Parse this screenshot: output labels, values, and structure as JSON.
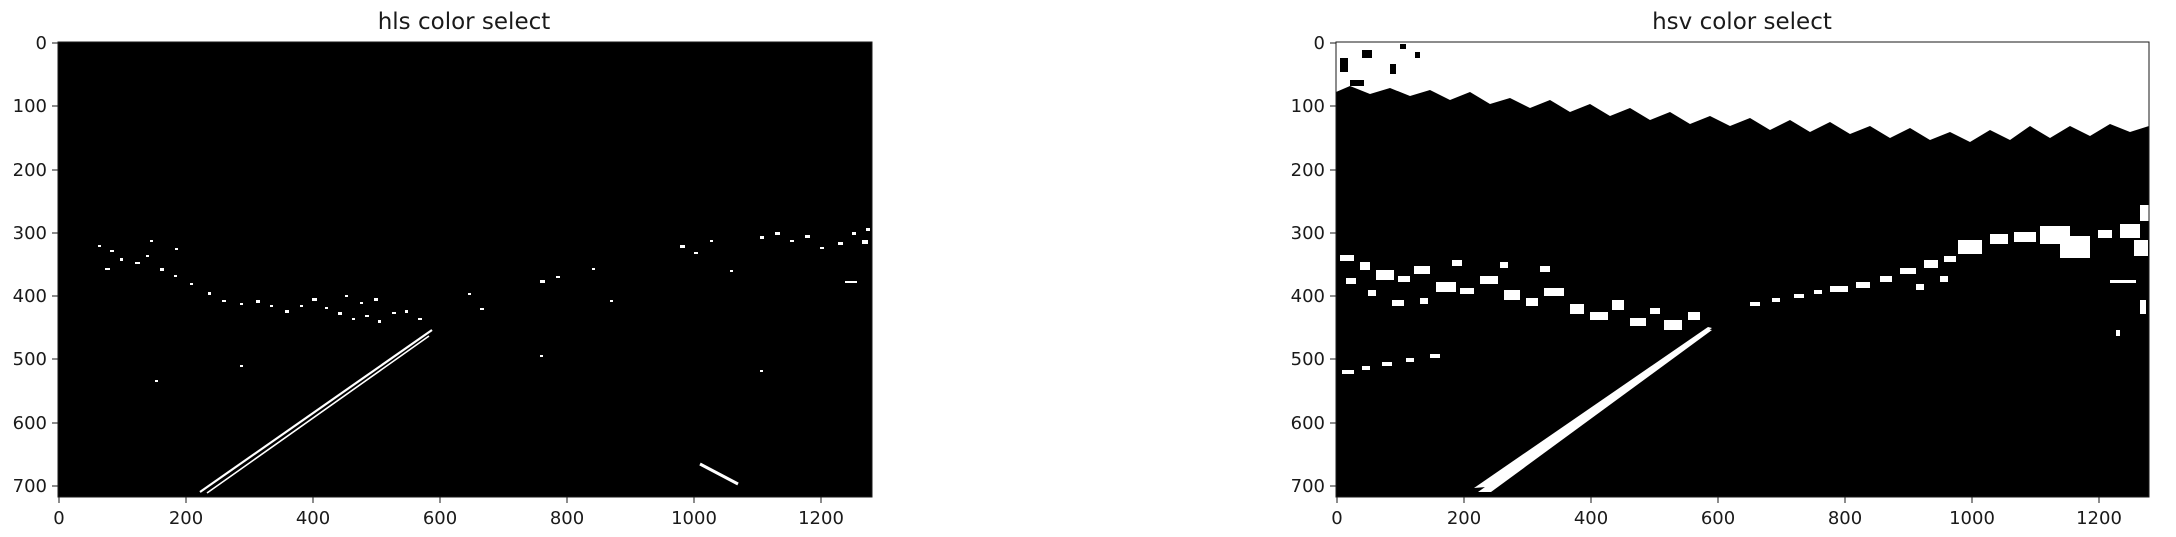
{
  "panels": [
    {
      "title": "hls color select",
      "x_ticks": [
        "0",
        "200",
        "400",
        "600",
        "800",
        "1000",
        "1200"
      ],
      "y_ticks": [
        "0",
        "100",
        "200",
        "300",
        "400",
        "500",
        "600",
        "700"
      ]
    },
    {
      "title": "hsv color select",
      "x_ticks": [
        "0",
        "200",
        "400",
        "600",
        "800",
        "1000",
        "1200"
      ],
      "y_ticks": [
        "0",
        "100",
        "200",
        "300",
        "400",
        "500",
        "600",
        "700"
      ]
    }
  ],
  "colors": {
    "background": "#000000",
    "mask": "#ffffff",
    "axis": "#1a1a1a"
  }
}
